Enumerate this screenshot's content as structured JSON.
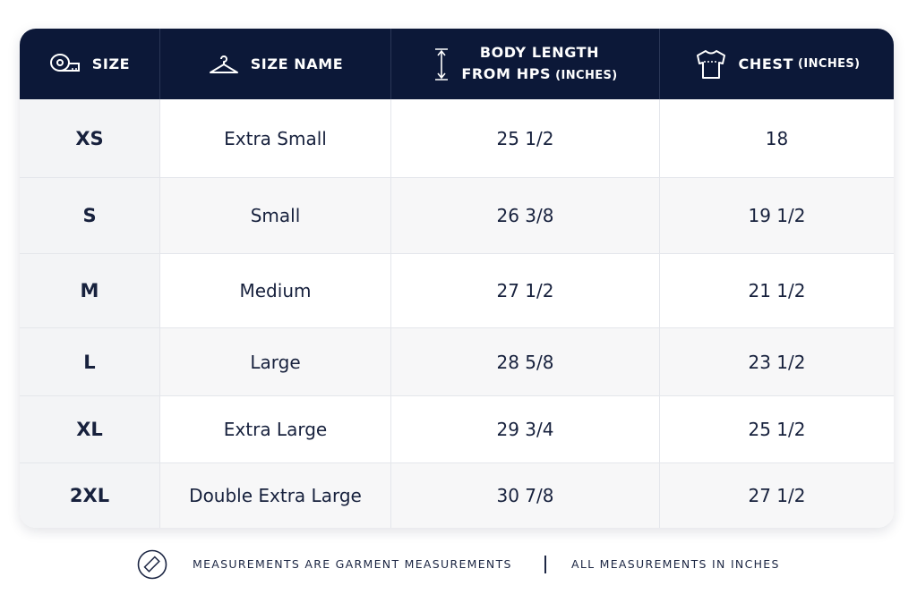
{
  "table": {
    "header": [
      {
        "label": "SIZE"
      },
      {
        "label": "SIZE NAME"
      },
      {
        "lines": [
          "BODY LENGTH",
          "FROM HPS"
        ],
        "unit": "(INCHES)"
      },
      {
        "label": "CHEST",
        "unit": "(INCHES)"
      }
    ],
    "rows": [
      [
        "XS",
        "Extra Small",
        "25 1/2",
        "18"
      ],
      [
        "S",
        "Small",
        "26 3/8",
        "19 1/2"
      ],
      [
        "M",
        "Medium",
        "27 1/2",
        "21 1/2"
      ],
      [
        "L",
        "Large",
        "28 5/8",
        "23 1/2"
      ],
      [
        "XL",
        "Extra Large",
        "29 3/4",
        "25 1/2"
      ],
      [
        "2XL",
        "Double Extra Large",
        "30 7/8",
        "27 1/2"
      ]
    ]
  },
  "footer": {
    "notes": [
      "MEASUREMENTS ARE GARMENT MEASUREMENTS",
      "ALL MEASUREMENTS IN INCHES"
    ]
  }
}
